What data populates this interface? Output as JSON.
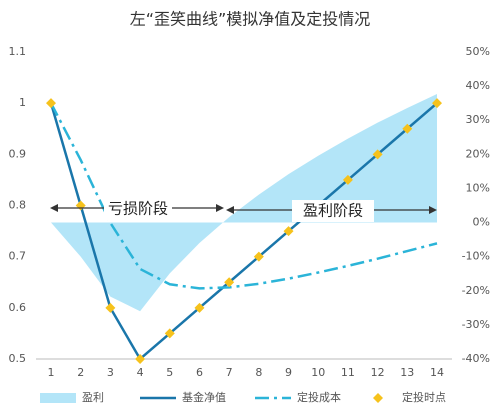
{
  "chart_data": {
    "type": "line",
    "title": "左“歪笑曲线”模拟净值及定投情况",
    "categories": [
      "1",
      "2",
      "3",
      "4",
      "5",
      "6",
      "7",
      "8",
      "9",
      "10",
      "11",
      "12",
      "13",
      "14"
    ],
    "series": [
      {
        "name": "盈利",
        "type": "area",
        "axis": "y2",
        "color": "#b3e5f8",
        "values": [
          0,
          -10,
          -21.7,
          -26,
          -14.9,
          -6,
          1.6,
          8.2,
          14.2,
          19.6,
          24.6,
          29.3,
          33.6,
          37.7
        ]
      },
      {
        "name": "基金净值",
        "type": "line",
        "color": "#1a76aa",
        "dash": "solid",
        "values": [
          1,
          0.8,
          0.6,
          0.5,
          0.55,
          0.6,
          0.65,
          0.7,
          0.75,
          0.8,
          0.85,
          0.9,
          0.95,
          1
        ]
      },
      {
        "name": "定投成本",
        "type": "line",
        "color": "#2bb4d8",
        "dash": "dashdot",
        "values": [
          1,
          0.889,
          0.766,
          0.676,
          0.646,
          0.638,
          0.64,
          0.647,
          0.657,
          0.669,
          0.682,
          0.696,
          0.711,
          0.726
        ]
      },
      {
        "name": "定投时点",
        "type": "scatter",
        "color": "#f6c21c",
        "values": [
          1,
          0.8,
          0.6,
          0.5,
          0.55,
          0.6,
          0.65,
          0.7,
          0.75,
          0.8,
          0.85,
          0.9,
          0.95,
          1
        ]
      }
    ],
    "ylim": [
      0.5,
      1.1
    ],
    "yticks": [
      0.5,
      0.6,
      0.7,
      0.8,
      0.9,
      1,
      1.1
    ],
    "y2lim": [
      -40,
      50
    ],
    "y2ticks": [
      {
        "value": -40,
        "label": "-40%"
      },
      {
        "value": -30,
        "label": "-30%"
      },
      {
        "value": -20,
        "label": "-20%"
      },
      {
        "value": -10,
        "label": "-10%"
      },
      {
        "value": 0,
        "label": "0%"
      },
      {
        "value": 10,
        "label": "10%"
      },
      {
        "value": 20,
        "label": "20%"
      },
      {
        "value": 30,
        "label": "30%"
      },
      {
        "value": 40,
        "label": "40%"
      },
      {
        "value": 50,
        "label": "50%"
      }
    ],
    "annotations": [
      "亏损阶段",
      "盈利阶段"
    ],
    "grid": false,
    "legend": "bottom"
  }
}
